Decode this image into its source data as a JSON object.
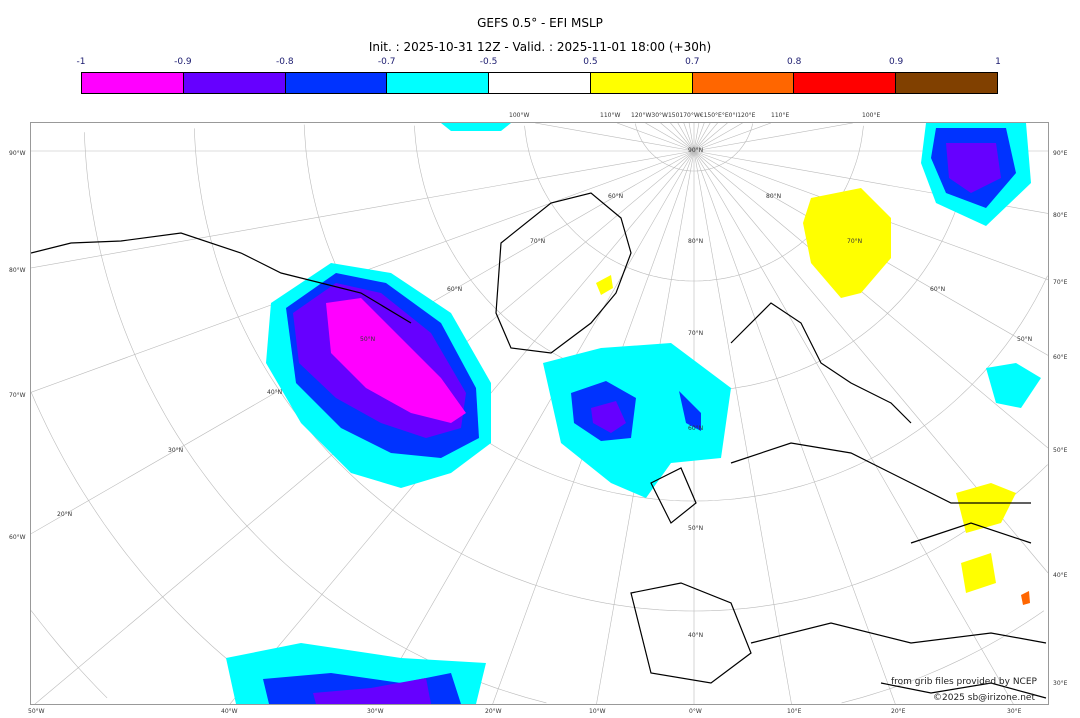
{
  "title": "GEFS 0.5° - EFI MSLP",
  "subtitle": "Init. : 2025-10-31 12Z - Valid. : 2025-11-01 18:00 (+30h)",
  "colorbar": {
    "ticks": [
      "-1",
      "-0.9",
      "-0.8",
      "-0.7",
      "-0.5",
      "0.5",
      "0.7",
      "0.8",
      "0.9",
      "1"
    ],
    "colors": [
      "#ff00ff",
      "#6600ff",
      "#0033ff",
      "#00ffff",
      "#ffffff",
      "#ffff00",
      "#ff6600",
      "#ff0000",
      "#804000"
    ]
  },
  "map": {
    "top_labels": [
      "100°W",
      "110°W",
      "120°W30°W150170°W€150°E°E0°I120°E",
      "110°E",
      "100°E"
    ],
    "bottom_labels": [
      "50°W",
      "40°W",
      "30°W",
      "20°W",
      "10°W",
      "0°W",
      "10°E",
      "20°E",
      "30°E"
    ],
    "left_labels": [
      "90°W",
      "80°W",
      "70°W",
      "60°W"
    ],
    "right_labels": [
      "90°E",
      "80°E",
      "70°E",
      "60°E",
      "50°E",
      "40°E",
      "30°E"
    ],
    "lat_labels": [
      "90°N",
      "80°N",
      "80°N",
      "70°N",
      "70°N",
      "70°N",
      "60°N",
      "60°N",
      "60°N",
      "60°N",
      "50°N",
      "50°N",
      "50°N",
      "40°N",
      "40°N",
      "30°N",
      "20°N"
    ],
    "credit_line1": "from grib files provided by NCEP",
    "credit_line2": "©2025 sb@irizone.net"
  }
}
